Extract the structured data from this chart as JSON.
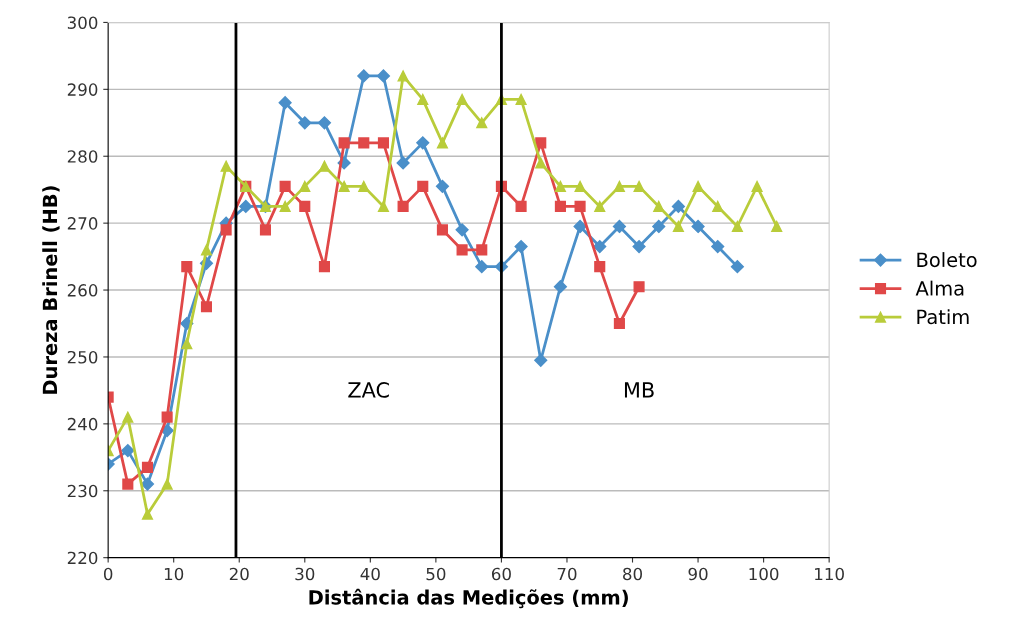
{
  "chart_data": {
    "type": "line",
    "xlabel": "Distância das Medições (mm)",
    "ylabel": "Dureza Brinell (HB)",
    "xlim": [
      0,
      110
    ],
    "xticks": [
      0,
      10,
      20,
      30,
      40,
      50,
      60,
      70,
      80,
      90,
      100,
      110
    ],
    "ylim": [
      220,
      300
    ],
    "yticks": [
      220,
      230,
      240,
      250,
      260,
      270,
      280,
      290,
      300
    ],
    "grid": "y",
    "legend": "right",
    "series": [
      {
        "name": "Boleto",
        "color": "#4a8fc9",
        "marker": "diamond",
        "x": [
          0,
          3,
          6,
          9,
          12,
          15,
          18,
          21,
          24,
          27,
          30,
          33,
          36,
          39,
          42,
          45,
          48,
          51,
          54,
          57,
          60,
          63,
          66,
          69,
          72,
          75,
          78,
          81,
          84,
          87,
          90,
          93,
          96
        ],
        "values": [
          234,
          236,
          231,
          239,
          255,
          264,
          270,
          272.5,
          272.5,
          288,
          285,
          285,
          279,
          292,
          292,
          279,
          282,
          275.5,
          269,
          263.5,
          263.5,
          266.5,
          249.5,
          260.5,
          269.5,
          266.5,
          269.5,
          266.5,
          269.5,
          272.5,
          269.5,
          266.5,
          263.5
        ]
      },
      {
        "name": "Alma",
        "color": "#e04848",
        "marker": "square",
        "x": [
          0,
          3,
          6,
          9,
          12,
          15,
          18,
          21,
          24,
          27,
          30,
          33,
          36,
          39,
          42,
          45,
          48,
          51,
          54,
          57,
          60,
          63,
          66,
          69,
          72,
          75,
          78,
          81
        ],
        "values": [
          244,
          231,
          233.5,
          241,
          263.5,
          257.5,
          269,
          275.5,
          269,
          275.5,
          272.5,
          263.5,
          282,
          282,
          282,
          272.5,
          275.5,
          269,
          266,
          266,
          275.5,
          272.5,
          282,
          272.5,
          272.5,
          263.5,
          255,
          260.5
        ]
      },
      {
        "name": "Patim",
        "color": "#b9cc3a",
        "marker": "triangle",
        "x": [
          0,
          3,
          6,
          9,
          12,
          15,
          18,
          21,
          24,
          27,
          30,
          33,
          36,
          39,
          42,
          45,
          48,
          51,
          54,
          57,
          60,
          63,
          66,
          69,
          72,
          75,
          78,
          81,
          84,
          87,
          90,
          93,
          96,
          99,
          102
        ],
        "values": [
          236,
          241,
          226.5,
          231,
          252,
          266,
          278.5,
          275.5,
          272.5,
          272.5,
          275.5,
          278.5,
          275.5,
          275.5,
          272.5,
          292,
          288.5,
          282,
          288.5,
          285,
          288.5,
          288.5,
          279,
          275.5,
          275.5,
          272.5,
          275.5,
          275.5,
          272.5,
          269.5,
          275.5,
          272.5,
          269.5,
          275.5,
          269.5
        ]
      }
    ],
    "ref_lines": [
      {
        "axis": "x",
        "value": 19.5,
        "color": "#000000"
      },
      {
        "axis": "x",
        "value": 60,
        "color": "#000000"
      }
    ],
    "annotations": [
      "ZAC",
      "MB"
    ]
  }
}
